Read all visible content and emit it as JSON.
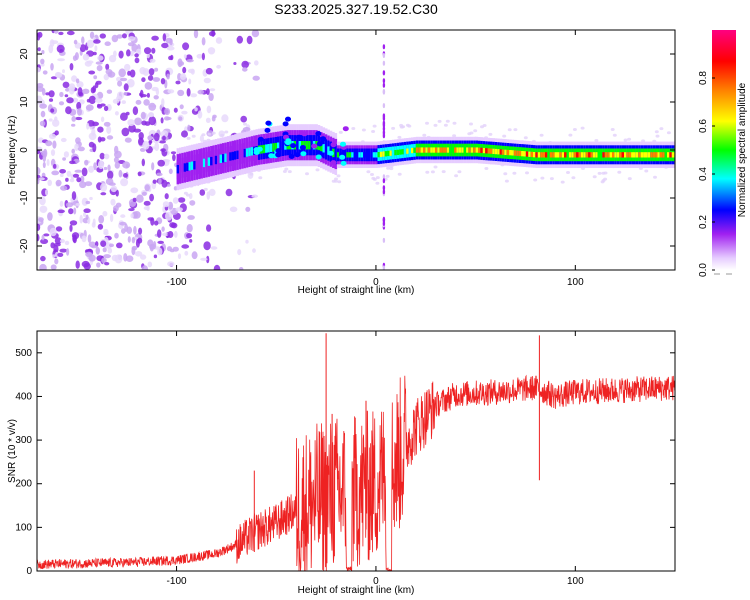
{
  "title": "S233.2025.327.19.52.C30",
  "chart_data": [
    {
      "type": "heatmap",
      "xlabel": "Height of straight line (km)",
      "ylabel": "Frequency (Hz)",
      "xlim": [
        -170,
        150
      ],
      "ylim": [
        -25,
        25
      ],
      "xticks": [
        -100,
        0,
        100
      ],
      "yticks": [
        -20,
        -10,
        0,
        10,
        20
      ],
      "colorbar": {
        "label": "Normalized spectral amplitude",
        "range": [
          0,
          1
        ],
        "ticks": [
          0.0,
          0.2,
          0.4,
          0.6,
          0.8
        ],
        "colors": [
          "#ffffff",
          "#a020f0",
          "#0000ff",
          "#00ffff",
          "#00ff00",
          "#ffff00",
          "#ff8000",
          "#ff0000",
          "#ff0080"
        ]
      },
      "ridge_center_hz": [
        {
          "x": -100,
          "y": -4
        },
        {
          "x": -80,
          "y": -2
        },
        {
          "x": -60,
          "y": 0
        },
        {
          "x": -45,
          "y": 1
        },
        {
          "x": -30,
          "y": 1
        },
        {
          "x": -20,
          "y": -1
        },
        {
          "x": 0,
          "y": -1
        },
        {
          "x": 20,
          "y": 0
        },
        {
          "x": 50,
          "y": 0
        },
        {
          "x": 80,
          "y": -1
        },
        {
          "x": 110,
          "y": -1
        },
        {
          "x": 150,
          "y": -1
        }
      ]
    },
    {
      "type": "line",
      "xlabel": "Height of straight line (km)",
      "ylabel": "SNR (10 * v/v)",
      "xlim": [
        -170,
        150
      ],
      "ylim": [
        0,
        550
      ],
      "xticks": [
        -100,
        0,
        100
      ],
      "yticks": [
        0,
        100,
        200,
        300,
        400,
        500
      ],
      "color": "#ee2222",
      "trend": [
        {
          "x": -170,
          "y": 15
        },
        {
          "x": -120,
          "y": 20
        },
        {
          "x": -100,
          "y": 25
        },
        {
          "x": -80,
          "y": 40
        },
        {
          "x": -70,
          "y": 60
        },
        {
          "x": -60,
          "y": 90
        },
        {
          "x": -50,
          "y": 110
        },
        {
          "x": -40,
          "y": 140
        },
        {
          "x": -30,
          "y": 160
        },
        {
          "x": -20,
          "y": 180
        },
        {
          "x": -10,
          "y": 180
        },
        {
          "x": 0,
          "y": 200
        },
        {
          "x": 10,
          "y": 250
        },
        {
          "x": 20,
          "y": 330
        },
        {
          "x": 30,
          "y": 380
        },
        {
          "x": 40,
          "y": 405
        },
        {
          "x": 60,
          "y": 410
        },
        {
          "x": 80,
          "y": 420
        },
        {
          "x": 90,
          "y": 400
        },
        {
          "x": 100,
          "y": 410
        },
        {
          "x": 150,
          "y": 420
        }
      ],
      "spikes": [
        {
          "x": -61,
          "y": 230
        },
        {
          "x": -25,
          "y": 545
        },
        {
          "x": -22,
          "y": 360
        },
        {
          "x": -5,
          "y": 390
        },
        {
          "x": 82,
          "y": 540
        }
      ]
    }
  ]
}
